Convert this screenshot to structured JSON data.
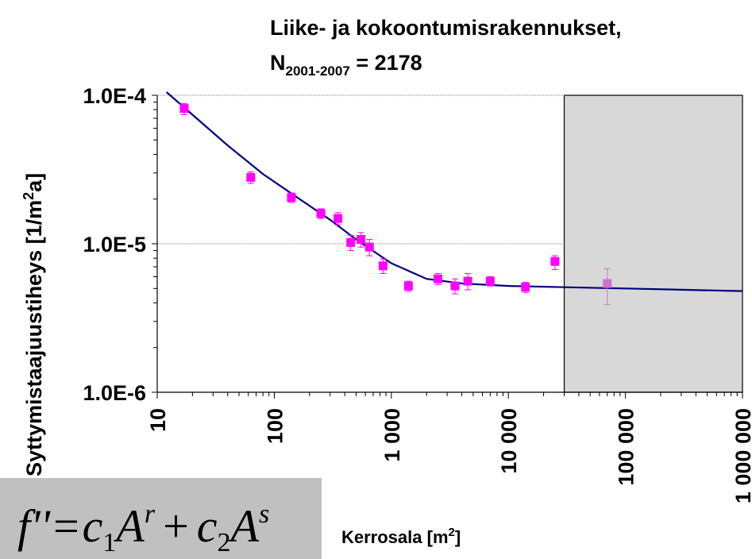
{
  "chart_data": {
    "type": "scatter",
    "title_line1": "Liike- ja kokoontumisrakennukset,",
    "title_line2_prefix": "N",
    "title_line2_subscript": "2001-2007",
    "title_line2_suffix": " = 2178",
    "ylabel_main": "Syttymistaajuustiheys [1/m",
    "ylabel_sup": "2",
    "ylabel_end": "a]",
    "xlabel_main": "Kerrosala [m",
    "xlabel_sup": "2",
    "xlabel_end": "]",
    "x_scale": "log",
    "y_scale": "log",
    "xlim": [
      10,
      1000000
    ],
    "ylim": [
      1e-06,
      0.0001
    ],
    "x_ticks": [
      {
        "value": 10,
        "label": "10"
      },
      {
        "value": 100,
        "label": "100"
      },
      {
        "value": 1000,
        "label": "1 000"
      },
      {
        "value": 10000,
        "label": "10 000"
      },
      {
        "value": 100000,
        "label": "100 000"
      },
      {
        "value": 1000000,
        "label": "1 000 000"
      }
    ],
    "y_ticks": [
      {
        "value": 0.0001,
        "label": "1.0E-4"
      },
      {
        "value": 1e-05,
        "label": "1.0E-5"
      },
      {
        "value": 1e-06,
        "label": "1.0E-6"
      }
    ],
    "grid": "horizontal major lines",
    "shaded_region_x": [
      30000,
      1000000
    ],
    "marker_color": "#ff00ff",
    "curve_color": "#000080",
    "shade_color": "#d8d8d8",
    "points": [
      {
        "x": 17,
        "y": 8.15e-05,
        "err_lo": 7.5e-06,
        "err_hi": 6.5e-06
      },
      {
        "x": 63,
        "y": 2.8e-05,
        "err_lo": 2.5e-06,
        "err_hi": 2.5e-06
      },
      {
        "x": 140,
        "y": 2.05e-05,
        "err_lo": 1.5e-06,
        "err_hi": 1.5e-06
      },
      {
        "x": 250,
        "y": 1.6e-05,
        "err_lo": 1.2e-06,
        "err_hi": 1.2e-06
      },
      {
        "x": 350,
        "y": 1.48e-05,
        "err_lo": 1.4e-06,
        "err_hi": 1.4e-06
      },
      {
        "x": 450,
        "y": 1.02e-05,
        "err_lo": 1.2e-06,
        "err_hi": 1.2e-06
      },
      {
        "x": 550,
        "y": 1.07e-05,
        "err_lo": 1.2e-06,
        "err_hi": 1.2e-06
      },
      {
        "x": 650,
        "y": 9.5e-06,
        "err_lo": 1.2e-06,
        "err_hi": 1.2e-06
      },
      {
        "x": 850,
        "y": 7.1e-06,
        "err_lo": 8e-07,
        "err_hi": 8e-07
      },
      {
        "x": 1400,
        "y": 5.2e-06,
        "err_lo": 4e-07,
        "err_hi": 4e-07
      },
      {
        "x": 2500,
        "y": 5.8e-06,
        "err_lo": 5e-07,
        "err_hi": 5e-07
      },
      {
        "x": 3500,
        "y": 5.2e-06,
        "err_lo": 6e-07,
        "err_hi": 6e-07
      },
      {
        "x": 4500,
        "y": 5.6e-06,
        "err_lo": 7e-07,
        "err_hi": 7e-07
      },
      {
        "x": 7000,
        "y": 5.6e-06,
        "err_lo": 4e-07,
        "err_hi": 4e-07
      },
      {
        "x": 14000,
        "y": 5.1e-06,
        "err_lo": 4e-07,
        "err_hi": 4e-07
      },
      {
        "x": 25000,
        "y": 7.6e-06,
        "err_lo": 9e-07,
        "err_hi": 7e-07
      },
      {
        "x": 70000,
        "y": 5.4e-06,
        "err_lo": 1.5e-06,
        "err_hi": 1.4e-06
      }
    ],
    "fit_curve": {
      "x": [
        12,
        20,
        40,
        80,
        150,
        300,
        500,
        1000,
        2000,
        4000,
        10000,
        30000,
        100000,
        300000,
        1000000
      ],
      "y": [
        0.000105,
        7.4e-05,
        4.6e-05,
        2.95e-05,
        2.1e-05,
        1.45e-05,
        1.07e-05,
        7.4e-06,
        5.8e-06,
        5.4e-06,
        5.2e-06,
        5.1e-06,
        5e-06,
        4.9e-06,
        4.8e-06
      ]
    }
  },
  "formula": {
    "f": "f",
    "primes": "''",
    "eq": "=",
    "c": "c",
    "sub1": "1",
    "A": "A",
    "r": "r",
    "plus": "+",
    "sub2": "2",
    "s": "s"
  }
}
